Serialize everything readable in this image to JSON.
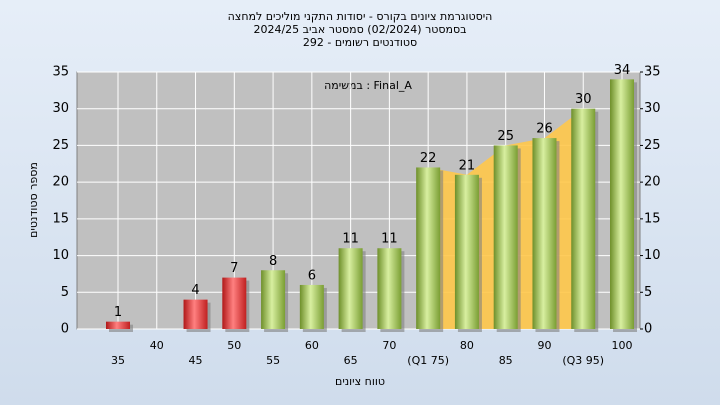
{
  "chart_data": {
    "type": "bar",
    "title": [
      "היסטוגרמת ציונים בקורס - יסודות התקני מוליכים למחצה",
      "בסמסטר  (02/2024)  סמסטר אביב 2024/25",
      "סטודנטים רשומים - 292"
    ],
    "annotation": "במשימה : Final_A",
    "xlabel": "טווח ציונים",
    "ylabel": "מספר סטודנטים",
    "categories": [
      "35",
      "40",
      "45",
      "50",
      "55",
      "60",
      "65",
      "70",
      "(Q1 75)",
      "80",
      "85",
      "90",
      "(Q3 95)",
      "100"
    ],
    "values": [
      1,
      0,
      4,
      7,
      8,
      6,
      11,
      11,
      22,
      21,
      25,
      26,
      30,
      34
    ],
    "value_labels": [
      "1",
      null,
      "4",
      "7",
      "8",
      "6",
      "11",
      "11",
      "22",
      "21",
      "25",
      "26",
      "30",
      "34"
    ],
    "colors": [
      "red",
      "red",
      "red",
      "red",
      "green",
      "green",
      "green",
      "green",
      "green",
      "green",
      "green",
      "green",
      "green",
      "green"
    ],
    "ylim": [
      0,
      35
    ],
    "yticks": [
      0,
      5,
      10,
      15,
      20,
      25,
      30,
      35
    ],
    "y2lim": [
      0,
      35
    ],
    "y2ticks": [
      0,
      5,
      10,
      15,
      20,
      25,
      30,
      35
    ],
    "grid": true
  }
}
